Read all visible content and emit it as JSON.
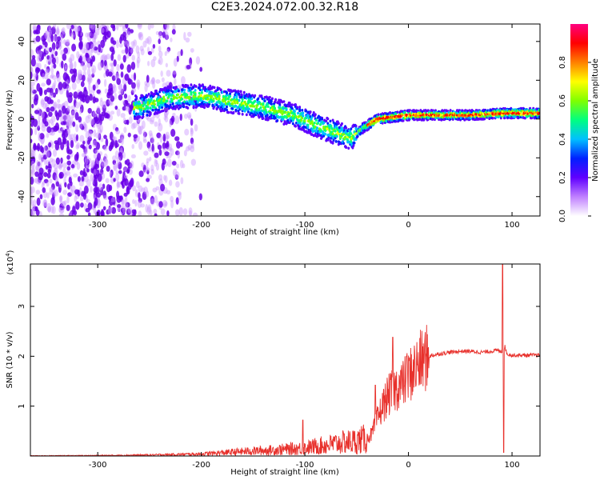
{
  "title": "C2E3.2024.072.00.32.R18",
  "colors": {
    "snr_line": "#e8312c",
    "spectrum_low": "#cc99ff",
    "spectrum_mid": "#6a00e8",
    "colormap": [
      "#ffffff",
      "#c080ff",
      "#6000ff",
      "#0020ff",
      "#00c0ff",
      "#00ff80",
      "#80ff00",
      "#ffff00",
      "#ff8000",
      "#ff0000",
      "#ff0080"
    ]
  },
  "chart_data": [
    {
      "type": "heatmap",
      "xlabel": "Height of straight line (km)",
      "ylabel": "Frequency (Hz)",
      "xlim": [
        -365,
        127
      ],
      "ylim": [
        -50,
        49
      ],
      "xticks": [
        -300,
        -200,
        -100,
        0,
        100
      ],
      "xtick_labels": [
        "-300",
        "-200",
        "-100",
        "0",
        "100"
      ],
      "yticks": [
        -40,
        -20,
        0,
        20,
        40
      ],
      "ytick_labels": [
        "-40",
        "-20",
        "0",
        "20",
        "40"
      ],
      "colorbar": {
        "label": "Normalized spectral amplitude",
        "ticks": [
          0.0,
          0.2,
          0.4,
          0.6,
          0.8
        ],
        "tick_labels": [
          "0.0",
          "0.2",
          "0.4",
          "0.6",
          "0.8"
        ],
        "range": [
          0,
          1
        ]
      },
      "ridge": {
        "x": [
          -260,
          -230,
          -200,
          -170,
          -140,
          -110,
          -90,
          -70,
          -55,
          -45,
          -30,
          -15,
          0,
          30,
          60,
          90,
          127
        ],
        "y": [
          6,
          11,
          12,
          9,
          6,
          2,
          -3,
          -7,
          -10,
          -5,
          0,
          1,
          2,
          2,
          2,
          3,
          3
        ]
      }
    },
    {
      "type": "line",
      "xlabel": "Height of straight line (km)",
      "ylabel": "SNR (10 * v/v)",
      "scale_label": "(x10^4)",
      "xlim": [
        -365,
        127
      ],
      "ylim": [
        0,
        3.85
      ],
      "xticks": [
        -300,
        -200,
        -100,
        0,
        100
      ],
      "xtick_labels": [
        "-300",
        "-200",
        "-100",
        "0",
        "100"
      ],
      "yticks": [
        1,
        2,
        3
      ],
      "ytick_labels": [
        "1",
        "2",
        "3"
      ],
      "series": [
        {
          "x": [
            -365,
            -300,
            -250,
            -200,
            -160,
            -130,
            -100,
            -80,
            -60,
            -50,
            -40,
            -35,
            -30,
            -25,
            -20,
            -15,
            -10,
            -5,
            0,
            10,
            20,
            30,
            40,
            50,
            60,
            70,
            80,
            85,
            88,
            91,
            93,
            95,
            100,
            110,
            127
          ],
          "y": [
            0.005,
            0.01,
            0.02,
            0.04,
            0.09,
            0.12,
            0.16,
            0.22,
            0.28,
            0.3,
            0.35,
            0.45,
            0.75,
            1.0,
            1.2,
            1.3,
            1.4,
            1.45,
            1.6,
            1.85,
            2.0,
            2.05,
            2.08,
            2.1,
            2.1,
            2.08,
            2.1,
            2.12,
            2.1,
            2.1,
            2.2,
            2.05,
            2.02,
            2.02,
            2.02
          ]
        }
      ],
      "spikes": [
        {
          "x": -102,
          "y": 0.72
        },
        {
          "x": -32,
          "y": 1.42
        },
        {
          "x": -15,
          "y": 2.38
        },
        {
          "x": -2,
          "y": 2.0
        },
        {
          "x": 91,
          "y": 3.85
        },
        {
          "x": 92,
          "y": 0.07
        }
      ]
    }
  ]
}
